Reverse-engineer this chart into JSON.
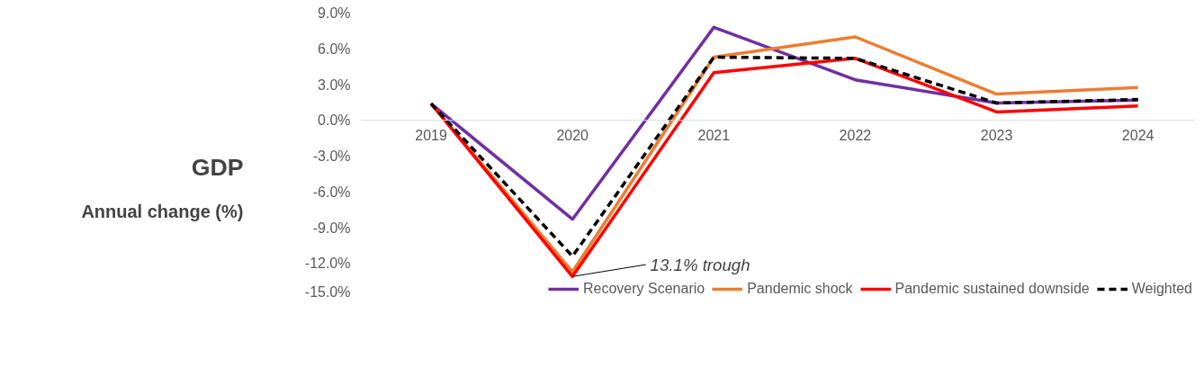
{
  "chart_data": {
    "type": "line",
    "title": "GDP",
    "ylabel": "Annual change (%)",
    "categories": [
      "2019",
      "2020",
      "2021",
      "2022",
      "2023",
      "2024"
    ],
    "series": [
      {
        "name": "Recovery Scenario",
        "color": "#7030a0",
        "values": [
          1.4,
          -8.3,
          7.8,
          3.4,
          1.45,
          1.7
        ]
      },
      {
        "name": "Pandemic shock",
        "color": "#ed7d31",
        "values": [
          1.4,
          -12.7,
          5.3,
          7.0,
          2.2,
          2.75
        ]
      },
      {
        "name": "Pandemic sustained downside",
        "color": "#ff0000",
        "values": [
          1.4,
          -13.1,
          4.0,
          5.2,
          0.7,
          1.2
        ]
      },
      {
        "name": "Weighted",
        "color": "#000000",
        "values": [
          1.4,
          -11.4,
          5.3,
          5.2,
          1.45,
          1.75
        ],
        "line_style": "dashed"
      }
    ],
    "ylim": [
      -15,
      9
    ],
    "yticks": [
      {
        "value": 9,
        "label": "9.0%"
      },
      {
        "value": 6,
        "label": "6.0%"
      },
      {
        "value": 3,
        "label": "3.0%"
      },
      {
        "value": 0,
        "label": "0.0%"
      },
      {
        "value": -3,
        "label": "-3.0%"
      },
      {
        "value": -6,
        "label": "-6.0%"
      },
      {
        "value": -9,
        "label": "-9.0%"
      },
      {
        "value": -12,
        "label": "-12.0%"
      },
      {
        "value": -15,
        "label": "-15.0%"
      }
    ],
    "annotations": [
      {
        "text": "13.1% trough",
        "x": "2020",
        "y": -13.1
      }
    ],
    "grid": false,
    "legend": "bottom",
    "marker": "none",
    "line_style": "solid"
  }
}
